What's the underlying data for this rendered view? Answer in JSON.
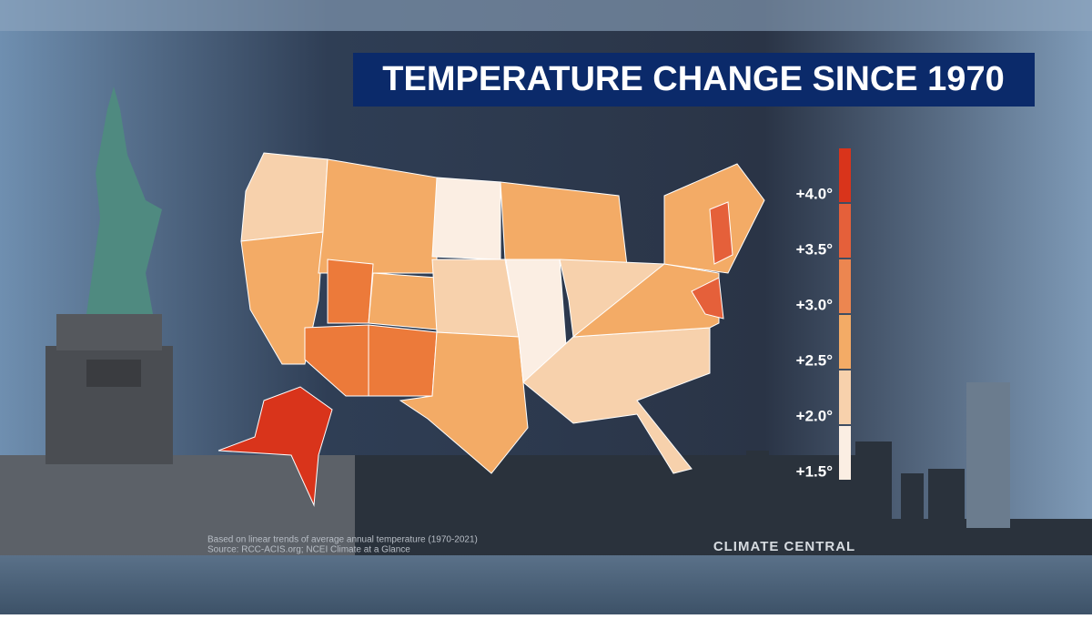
{
  "title": "TEMPERATURE CHANGE SINCE 1970",
  "legend": {
    "items": [
      {
        "label": "+4.0°",
        "color": "#d9341b"
      },
      {
        "label": "+3.5°",
        "color": "#e5603a"
      },
      {
        "label": "+3.0°",
        "color": "#ec8650"
      },
      {
        "label": "+2.5°",
        "color": "#f3ab66"
      },
      {
        "label": "+2.0°",
        "color": "#f7d1ac"
      },
      {
        "label": "+1.5°",
        "color": "#fbeee3"
      }
    ]
  },
  "footnote": {
    "lines": [
      "Based on linear trends of average annual temperature (1970-2021)",
      "Source: RCC-ACIS.org; NCEI Climate at a Glance"
    ]
  },
  "logo": {
    "text": "CLIMATE CENTRAL"
  }
}
